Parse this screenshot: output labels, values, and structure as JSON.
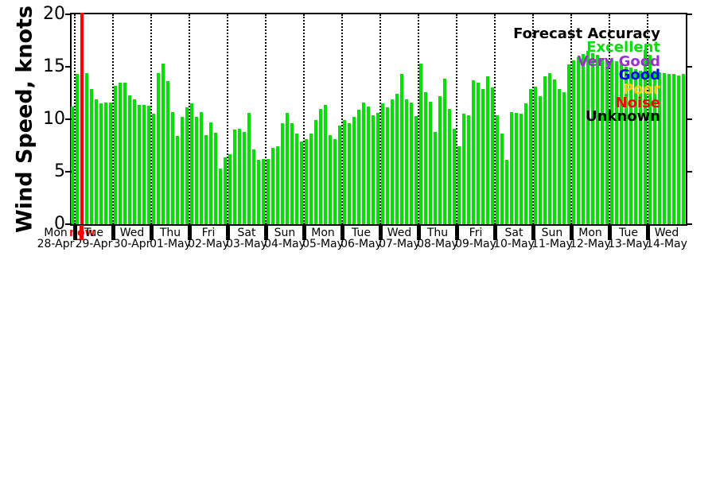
{
  "chart_data": {
    "type": "bar",
    "ylabel": "Wind Speed, knots",
    "ylim": [
      0,
      20
    ],
    "yticks": [
      0,
      5,
      10,
      15,
      20
    ],
    "bar_color": "#00e000",
    "now_marker": {
      "label": "now",
      "color": "#ff0000"
    },
    "legend": {
      "title": "Forecast Accuracy",
      "title_color": "#000000",
      "position": "top-right",
      "entries": [
        {
          "label": "Excellent",
          "color": "#00e000"
        },
        {
          "label": "Very Good",
          "color": "#9933cc"
        },
        {
          "label": "Good",
          "color": "#0000ff"
        },
        {
          "label": "Poor",
          "color": "#ffcc00"
        },
        {
          "label": "Noise",
          "color": "#ff0000"
        },
        {
          "label": "Unknown",
          "color": "#000000"
        }
      ]
    },
    "grid": "vertical-dotted-per-day",
    "bars_per_day": 8,
    "days": [
      {
        "day": "Mon",
        "date": "28-Apr",
        "values": [
          null,
          null,
          null,
          null,
          null,
          null,
          null,
          11.2
        ]
      },
      {
        "day": "Tue",
        "date": "29-Apr",
        "values": [
          14.3,
          "now",
          14.4,
          12.9,
          11.9,
          11.5,
          11.6,
          11.6
        ]
      },
      {
        "day": "Wed",
        "date": "30-Apr",
        "values": [
          13.2,
          13.5,
          13.5,
          12.3,
          11.9,
          11.4,
          11.4,
          11.3
        ]
      },
      {
        "day": "Thu",
        "date": "01-May",
        "values": [
          10.5,
          14.4,
          15.3,
          13.6,
          10.7,
          8.4,
          10.2,
          11.1
        ]
      },
      {
        "day": "Fri",
        "date": "02-May",
        "values": [
          11.5,
          10.2,
          10.7,
          8.5,
          9.7,
          8.7,
          5.3,
          6.4
        ]
      },
      {
        "day": "Sat",
        "date": "03-May",
        "values": [
          6.7,
          9.0,
          9.1,
          8.8,
          10.6,
          7.1,
          6.1,
          6.2
        ]
      },
      {
        "day": "Sun",
        "date": "04-May",
        "values": [
          6.2,
          7.3,
          7.4,
          9.6,
          10.6,
          9.6,
          8.6,
          7.9
        ]
      },
      {
        "day": "Mon",
        "date": "05-May",
        "values": [
          8.1,
          8.6,
          9.9,
          11.0,
          11.4,
          8.5,
          8.1,
          9.4
        ]
      },
      {
        "day": "Tue",
        "date": "06-May",
        "values": [
          9.9,
          9.6,
          10.2,
          10.9,
          11.6,
          11.2,
          10.4,
          10.6
        ]
      },
      {
        "day": "Wed",
        "date": "07-May",
        "values": [
          11.5,
          11.1,
          11.9,
          12.4,
          14.3,
          11.9,
          11.6,
          10.3
        ]
      },
      {
        "day": "Thu",
        "date": "08-May",
        "values": [
          15.3,
          12.6,
          11.7,
          8.8,
          12.2,
          13.9,
          11.0,
          9.1
        ]
      },
      {
        "day": "Fri",
        "date": "09-May",
        "values": [
          7.4,
          10.5,
          10.4,
          13.7,
          13.5,
          12.9,
          14.1,
          13.0
        ]
      },
      {
        "day": "Sat",
        "date": "10-May",
        "values": [
          10.4,
          8.6,
          6.1,
          10.7,
          10.6,
          10.5,
          11.5,
          12.9
        ]
      },
      {
        "day": "Sun",
        "date": "11-May",
        "values": [
          13.1,
          12.2,
          14.1,
          14.4,
          13.8,
          12.9,
          12.6,
          15.2
        ]
      },
      {
        "day": "Mon",
        "date": "12-May",
        "values": [
          15.6,
          15.9,
          16.2,
          16.5,
          16.3,
          16.1,
          15.8,
          15.7
        ]
      },
      {
        "day": "Tue",
        "date": "13-May",
        "values": [
          15.7,
          15.5,
          15.2,
          15.0,
          14.9,
          14.8,
          14.6,
          16.6
        ]
      },
      {
        "day": "Wed",
        "date": "14-May",
        "values": [
          16.1,
          14.6,
          14.5,
          14.4,
          14.3,
          14.3,
          14.2,
          14.3
        ]
      }
    ]
  }
}
